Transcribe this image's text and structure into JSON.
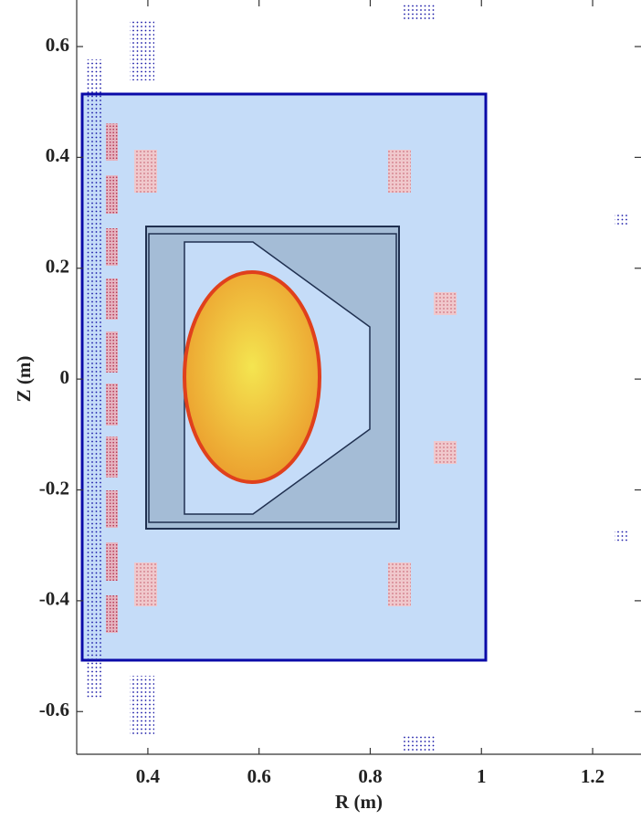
{
  "chart_data": {
    "type": "cross-section",
    "xlabel": "R (m)",
    "ylabel": "Z (m)",
    "xlim": [
      0.272,
      1.287
    ],
    "ylim": [
      -0.677,
      0.684
    ],
    "xticks": [
      0.4,
      0.6,
      0.8,
      1,
      1.2
    ],
    "yticks": [
      -0.6,
      -0.4,
      -0.2,
      0,
      0.2,
      0.4,
      0.6
    ]
  }
}
